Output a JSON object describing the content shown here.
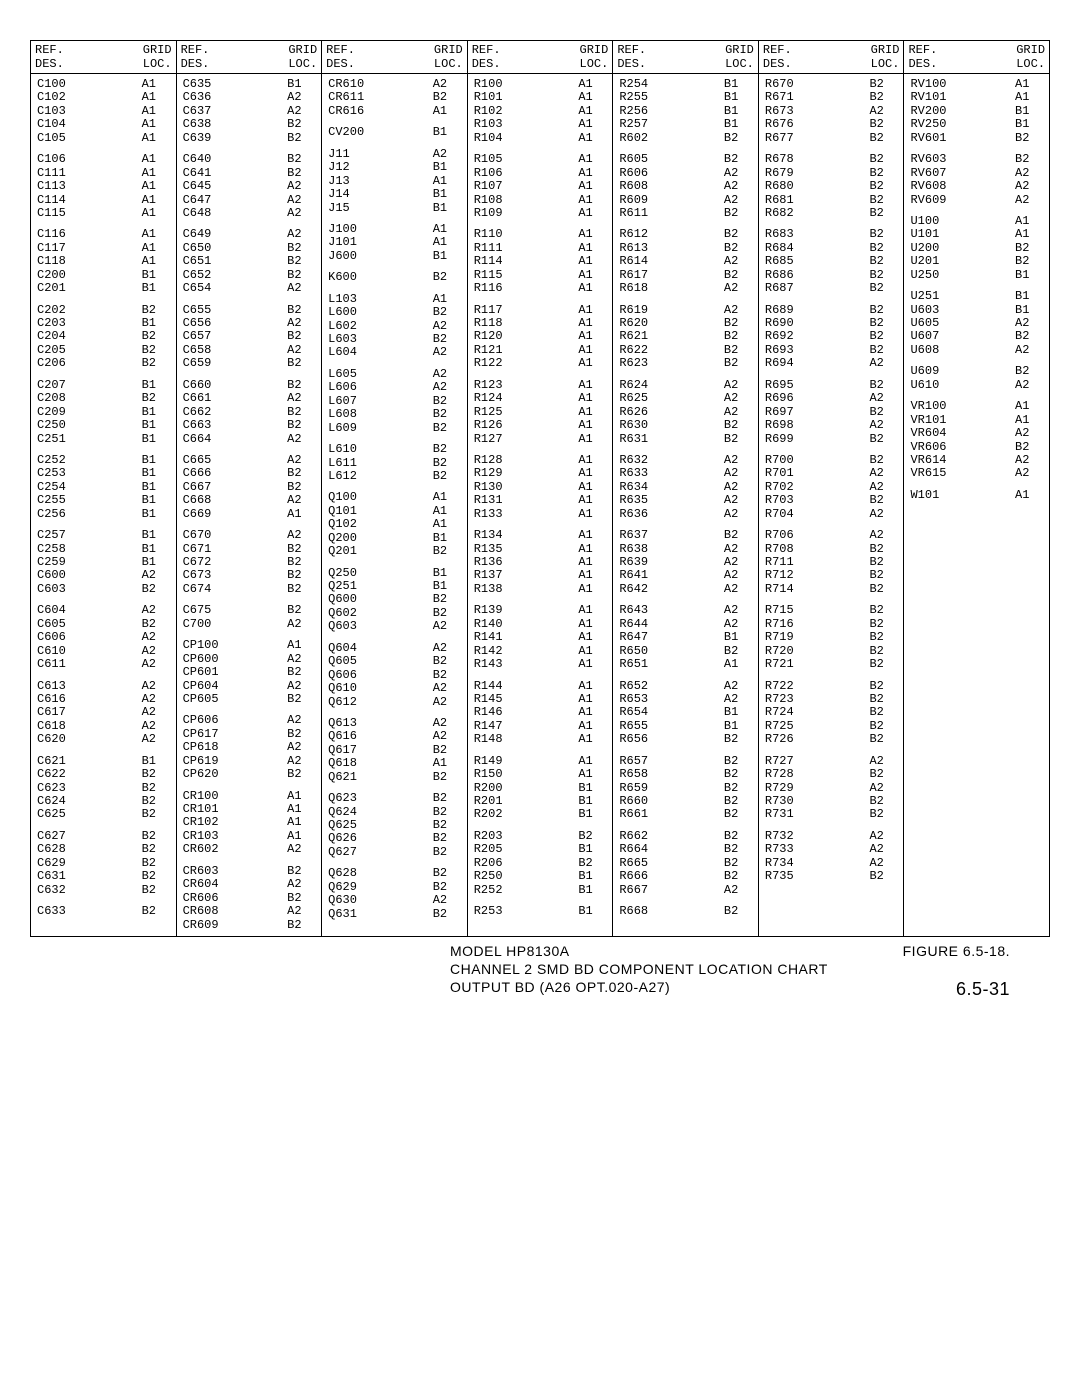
{
  "header": {
    "ref": "REF.\nDES.",
    "grid": "GRID\nLOC."
  },
  "columns": [
    {
      "groups": [
        [
          "C100",
          "A1",
          "C102",
          "A1",
          "C103",
          "A1",
          "C104",
          "A1",
          "C105",
          "A1"
        ],
        [
          "C106",
          "A1",
          "C111",
          "A1",
          "C113",
          "A1",
          "C114",
          "A1",
          "C115",
          "A1"
        ],
        [
          "C116",
          "A1",
          "C117",
          "A1",
          "C118",
          "A1",
          "C200",
          "B1",
          "C201",
          "B1"
        ],
        [
          "C202",
          "B2",
          "C203",
          "B1",
          "C204",
          "B2",
          "C205",
          "B2",
          "C206",
          "B2"
        ],
        [
          "C207",
          "B1",
          "C208",
          "B2",
          "C209",
          "B1",
          "C250",
          "B1",
          "C251",
          "B1"
        ],
        [
          "C252",
          "B1",
          "C253",
          "B1",
          "C254",
          "B1",
          "C255",
          "B1",
          "C256",
          "B1"
        ],
        [
          "C257",
          "B1",
          "C258",
          "B1",
          "C259",
          "B1",
          "C600",
          "A2",
          "C603",
          "B2"
        ],
        [
          "C604",
          "A2",
          "C605",
          "B2",
          "C606",
          "A2",
          "C610",
          "A2",
          "C611",
          "A2"
        ],
        [
          "C613",
          "A2",
          "C616",
          "A2",
          "C617",
          "A2",
          "C618",
          "A2",
          "C620",
          "A2"
        ],
        [
          "C621",
          "B1",
          "C622",
          "B2",
          "C623",
          "B2",
          "C624",
          "B2",
          "C625",
          "B2"
        ],
        [
          "C627",
          "B2",
          "C628",
          "B2",
          "C629",
          "B2",
          "C631",
          "B2",
          "C632",
          "B2"
        ],
        [
          "C633",
          "B2"
        ]
      ]
    },
    {
      "groups": [
        [
          "C635",
          "B1",
          "C636",
          "A2",
          "C637",
          "A2",
          "C638",
          "B2",
          "C639",
          "B2"
        ],
        [
          "C640",
          "B2",
          "C641",
          "B2",
          "C645",
          "A2",
          "C647",
          "A2",
          "C648",
          "A2"
        ],
        [
          "C649",
          "A2",
          "C650",
          "B2",
          "C651",
          "B2",
          "C652",
          "B2",
          "C654",
          "A2"
        ],
        [
          "C655",
          "B2",
          "C656",
          "A2",
          "C657",
          "B2",
          "C658",
          "A2",
          "C659",
          "B2"
        ],
        [
          "C660",
          "B2",
          "C661",
          "A2",
          "C662",
          "B2",
          "C663",
          "B2",
          "C664",
          "A2"
        ],
        [
          "C665",
          "A2",
          "C666",
          "B2",
          "C667",
          "B2",
          "C668",
          "A2",
          "C669",
          "A1"
        ],
        [
          "C670",
          "A2",
          "C671",
          "B2",
          "C672",
          "B2",
          "C673",
          "B2",
          "C674",
          "B2"
        ],
        [
          "C675",
          "B2",
          "C700",
          "A2"
        ],
        [
          "CP100",
          "A1",
          "CP600",
          "A2",
          "CP601",
          "B2",
          "CP604",
          "A2",
          "CP605",
          "B2"
        ],
        [
          "CP606",
          "A2",
          "CP617",
          "B2",
          "CP618",
          "A2",
          "CP619",
          "A2",
          "CP620",
          "B2"
        ],
        [
          "CR100",
          "A1",
          "CR101",
          "A1",
          "CR102",
          "A1",
          "CR103",
          "A1",
          "CR602",
          "A2"
        ],
        [
          "CR603",
          "B2",
          "CR604",
          "A2",
          "CR606",
          "B2",
          "CR608",
          "A2",
          "CR609",
          "B2"
        ]
      ]
    },
    {
      "groups": [
        [
          "CR610",
          "A2",
          "CR611",
          "B2",
          "CR616",
          "A1"
        ],
        [
          "CV200",
          "B1"
        ],
        [
          "J11",
          "A2",
          "J12",
          "B1",
          "J13",
          "A1",
          "J14",
          "B1",
          "J15",
          "B1"
        ],
        [
          "J100",
          "A1",
          "J101",
          "A1",
          "J600",
          "B1"
        ],
        [
          "K600",
          "B2"
        ],
        [
          "L103",
          "A1",
          "L600",
          "B2",
          "L602",
          "A2",
          "L603",
          "B2",
          "L604",
          "A2"
        ],
        [
          "L605",
          "A2",
          "L606",
          "A2",
          "L607",
          "B2",
          "L608",
          "B2",
          "L609",
          "B2"
        ],
        [
          "L610",
          "B2",
          "L611",
          "B2",
          "L612",
          "B2"
        ],
        [
          "Q100",
          "A1",
          "Q101",
          "A1",
          "Q102",
          "A1",
          "Q200",
          "B1",
          "Q201",
          "B2"
        ],
        [
          "Q250",
          "B1",
          "Q251",
          "B1",
          "Q600",
          "B2",
          "Q602",
          "B2",
          "Q603",
          "A2"
        ],
        [
          "Q604",
          "A2",
          "Q605",
          "B2",
          "Q606",
          "B2",
          "Q610",
          "A2",
          "Q612",
          "A2"
        ],
        [
          "Q613",
          "A2",
          "Q616",
          "A2",
          "Q617",
          "B2",
          "Q618",
          "A1",
          "Q621",
          "B2"
        ],
        [
          "Q623",
          "B2",
          "Q624",
          "B2",
          "Q625",
          "B2",
          "Q626",
          "B2",
          "Q627",
          "B2"
        ],
        [
          "Q628",
          "B2",
          "Q629",
          "B2",
          "Q630",
          "A2",
          "Q631",
          "B2"
        ]
      ]
    },
    {
      "groups": [
        [
          "R100",
          "A1",
          "R101",
          "A1",
          "R102",
          "A1",
          "R103",
          "A1",
          "R104",
          "A1"
        ],
        [
          "R105",
          "A1",
          "R106",
          "A1",
          "R107",
          "A1",
          "R108",
          "A1",
          "R109",
          "A1"
        ],
        [
          "R110",
          "A1",
          "R111",
          "A1",
          "R114",
          "A1",
          "R115",
          "A1",
          "R116",
          "A1"
        ],
        [
          "R117",
          "A1",
          "R118",
          "A1",
          "R120",
          "A1",
          "R121",
          "A1",
          "R122",
          "A1"
        ],
        [
          "R123",
          "A1",
          "R124",
          "A1",
          "R125",
          "A1",
          "R126",
          "A1",
          "R127",
          "A1"
        ],
        [
          "R128",
          "A1",
          "R129",
          "A1",
          "R130",
          "A1",
          "R131",
          "A1",
          "R133",
          "A1"
        ],
        [
          "R134",
          "A1",
          "R135",
          "A1",
          "R136",
          "A1",
          "R137",
          "A1",
          "R138",
          "A1"
        ],
        [
          "R139",
          "A1",
          "R140",
          "A1",
          "R141",
          "A1",
          "R142",
          "A1",
          "R143",
          "A1"
        ],
        [
          "R144",
          "A1",
          "R145",
          "A1",
          "R146",
          "A1",
          "R147",
          "A1",
          "R148",
          "A1"
        ],
        [
          "R149",
          "A1",
          "R150",
          "A1",
          "R200",
          "B1",
          "R201",
          "B1",
          "R202",
          "B1"
        ],
        [
          "R203",
          "B2",
          "R205",
          "B1",
          "R206",
          "B2",
          "R250",
          "B1",
          "R252",
          "B1"
        ],
        [
          "R253",
          "B1"
        ]
      ]
    },
    {
      "groups": [
        [
          "R254",
          "B1",
          "R255",
          "B1",
          "R256",
          "B1",
          "R257",
          "B1",
          "R602",
          "B2"
        ],
        [
          "R605",
          "B2",
          "R606",
          "A2",
          "R608",
          "A2",
          "R609",
          "A2",
          "R611",
          "B2"
        ],
        [
          "R612",
          "B2",
          "R613",
          "B2",
          "R614",
          "A2",
          "R617",
          "B2",
          "R618",
          "A2"
        ],
        [
          "R619",
          "A2",
          "R620",
          "B2",
          "R621",
          "B2",
          "R622",
          "B2",
          "R623",
          "B2"
        ],
        [
          "R624",
          "A2",
          "R625",
          "A2",
          "R626",
          "A2",
          "R630",
          "B2",
          "R631",
          "B2"
        ],
        [
          "R632",
          "A2",
          "R633",
          "A2",
          "R634",
          "A2",
          "R635",
          "A2",
          "R636",
          "A2"
        ],
        [
          "R637",
          "B2",
          "R638",
          "A2",
          "R639",
          "A2",
          "R641",
          "A2",
          "R642",
          "A2"
        ],
        [
          "R643",
          "A2",
          "R644",
          "A2",
          "R647",
          "B1",
          "R650",
          "B2",
          "R651",
          "A1"
        ],
        [
          "R652",
          "A2",
          "R653",
          "A2",
          "R654",
          "B1",
          "R655",
          "B1",
          "R656",
          "B2"
        ],
        [
          "R657",
          "B2",
          "R658",
          "B2",
          "R659",
          "B2",
          "R660",
          "B2",
          "R661",
          "B2"
        ],
        [
          "R662",
          "B2",
          "R664",
          "B2",
          "R665",
          "B2",
          "R666",
          "B2",
          "R667",
          "A2"
        ],
        [
          "R668",
          "B2"
        ]
      ]
    },
    {
      "groups": [
        [
          "R670",
          "B2",
          "R671",
          "B2",
          "R673",
          "A2",
          "R676",
          "B2",
          "R677",
          "B2"
        ],
        [
          "R678",
          "B2",
          "R679",
          "B2",
          "R680",
          "B2",
          "R681",
          "B2",
          "R682",
          "B2"
        ],
        [
          "R683",
          "B2",
          "R684",
          "B2",
          "R685",
          "B2",
          "R686",
          "B2",
          "R687",
          "B2"
        ],
        [
          "R689",
          "B2",
          "R690",
          "B2",
          "R692",
          "B2",
          "R693",
          "B2",
          "R694",
          "A2"
        ],
        [
          "R695",
          "B2",
          "R696",
          "A2",
          "R697",
          "B2",
          "R698",
          "A2",
          "R699",
          "B2"
        ],
        [
          "R700",
          "B2",
          "R701",
          "A2",
          "R702",
          "A2",
          "R703",
          "B2",
          "R704",
          "A2"
        ],
        [
          "R706",
          "A2",
          "R708",
          "B2",
          "R711",
          "B2",
          "R712",
          "B2",
          "R714",
          "B2"
        ],
        [
          "R715",
          "B2",
          "R716",
          "B2",
          "R719",
          "B2",
          "R720",
          "B2",
          "R721",
          "B2"
        ],
        [
          "R722",
          "B2",
          "R723",
          "B2",
          "R724",
          "B2",
          "R725",
          "B2",
          "R726",
          "B2"
        ],
        [
          "R727",
          "A2",
          "R728",
          "B2",
          "R729",
          "A2",
          "R730",
          "B2",
          "R731",
          "B2"
        ],
        [
          "R732",
          "A2",
          "R733",
          "A2",
          "R734",
          "A2",
          "R735",
          "B2"
        ]
      ]
    },
    {
      "groups": [
        [
          "RV100",
          "A1",
          "RV101",
          "A1",
          "RV200",
          "B1",
          "RV250",
          "B1",
          "RV601",
          "B2"
        ],
        [
          "RV603",
          "B2",
          "RV607",
          "A2",
          "RV608",
          "A2",
          "RV609",
          "A2"
        ],
        [
          "U100",
          "A1",
          "U101",
          "A1",
          "U200",
          "B2",
          "U201",
          "B2",
          "U250",
          "B1"
        ],
        [
          "U251",
          "B1",
          "U603",
          "B1",
          "U605",
          "A2",
          "U607",
          "B2",
          "U608",
          "A2"
        ],
        [
          "U609",
          "B2",
          "U610",
          "A2"
        ],
        [
          "VR100",
          "A1",
          "VR101",
          "A1",
          "VR604",
          "A2",
          "VR606",
          "B2",
          "VR614",
          "A2",
          "VR615",
          "A2"
        ],
        [
          "W101",
          "A1"
        ]
      ]
    }
  ],
  "footer": {
    "model": "MODEL  HP8130A",
    "figure": "FIGURE 6.5-18.",
    "line2": "CHANNEL 2 SMD BD COMPONENT LOCATION CHART",
    "line3": "OUTPUT BD  (A26 OPT.020-A27)",
    "page": "6.5-31"
  }
}
